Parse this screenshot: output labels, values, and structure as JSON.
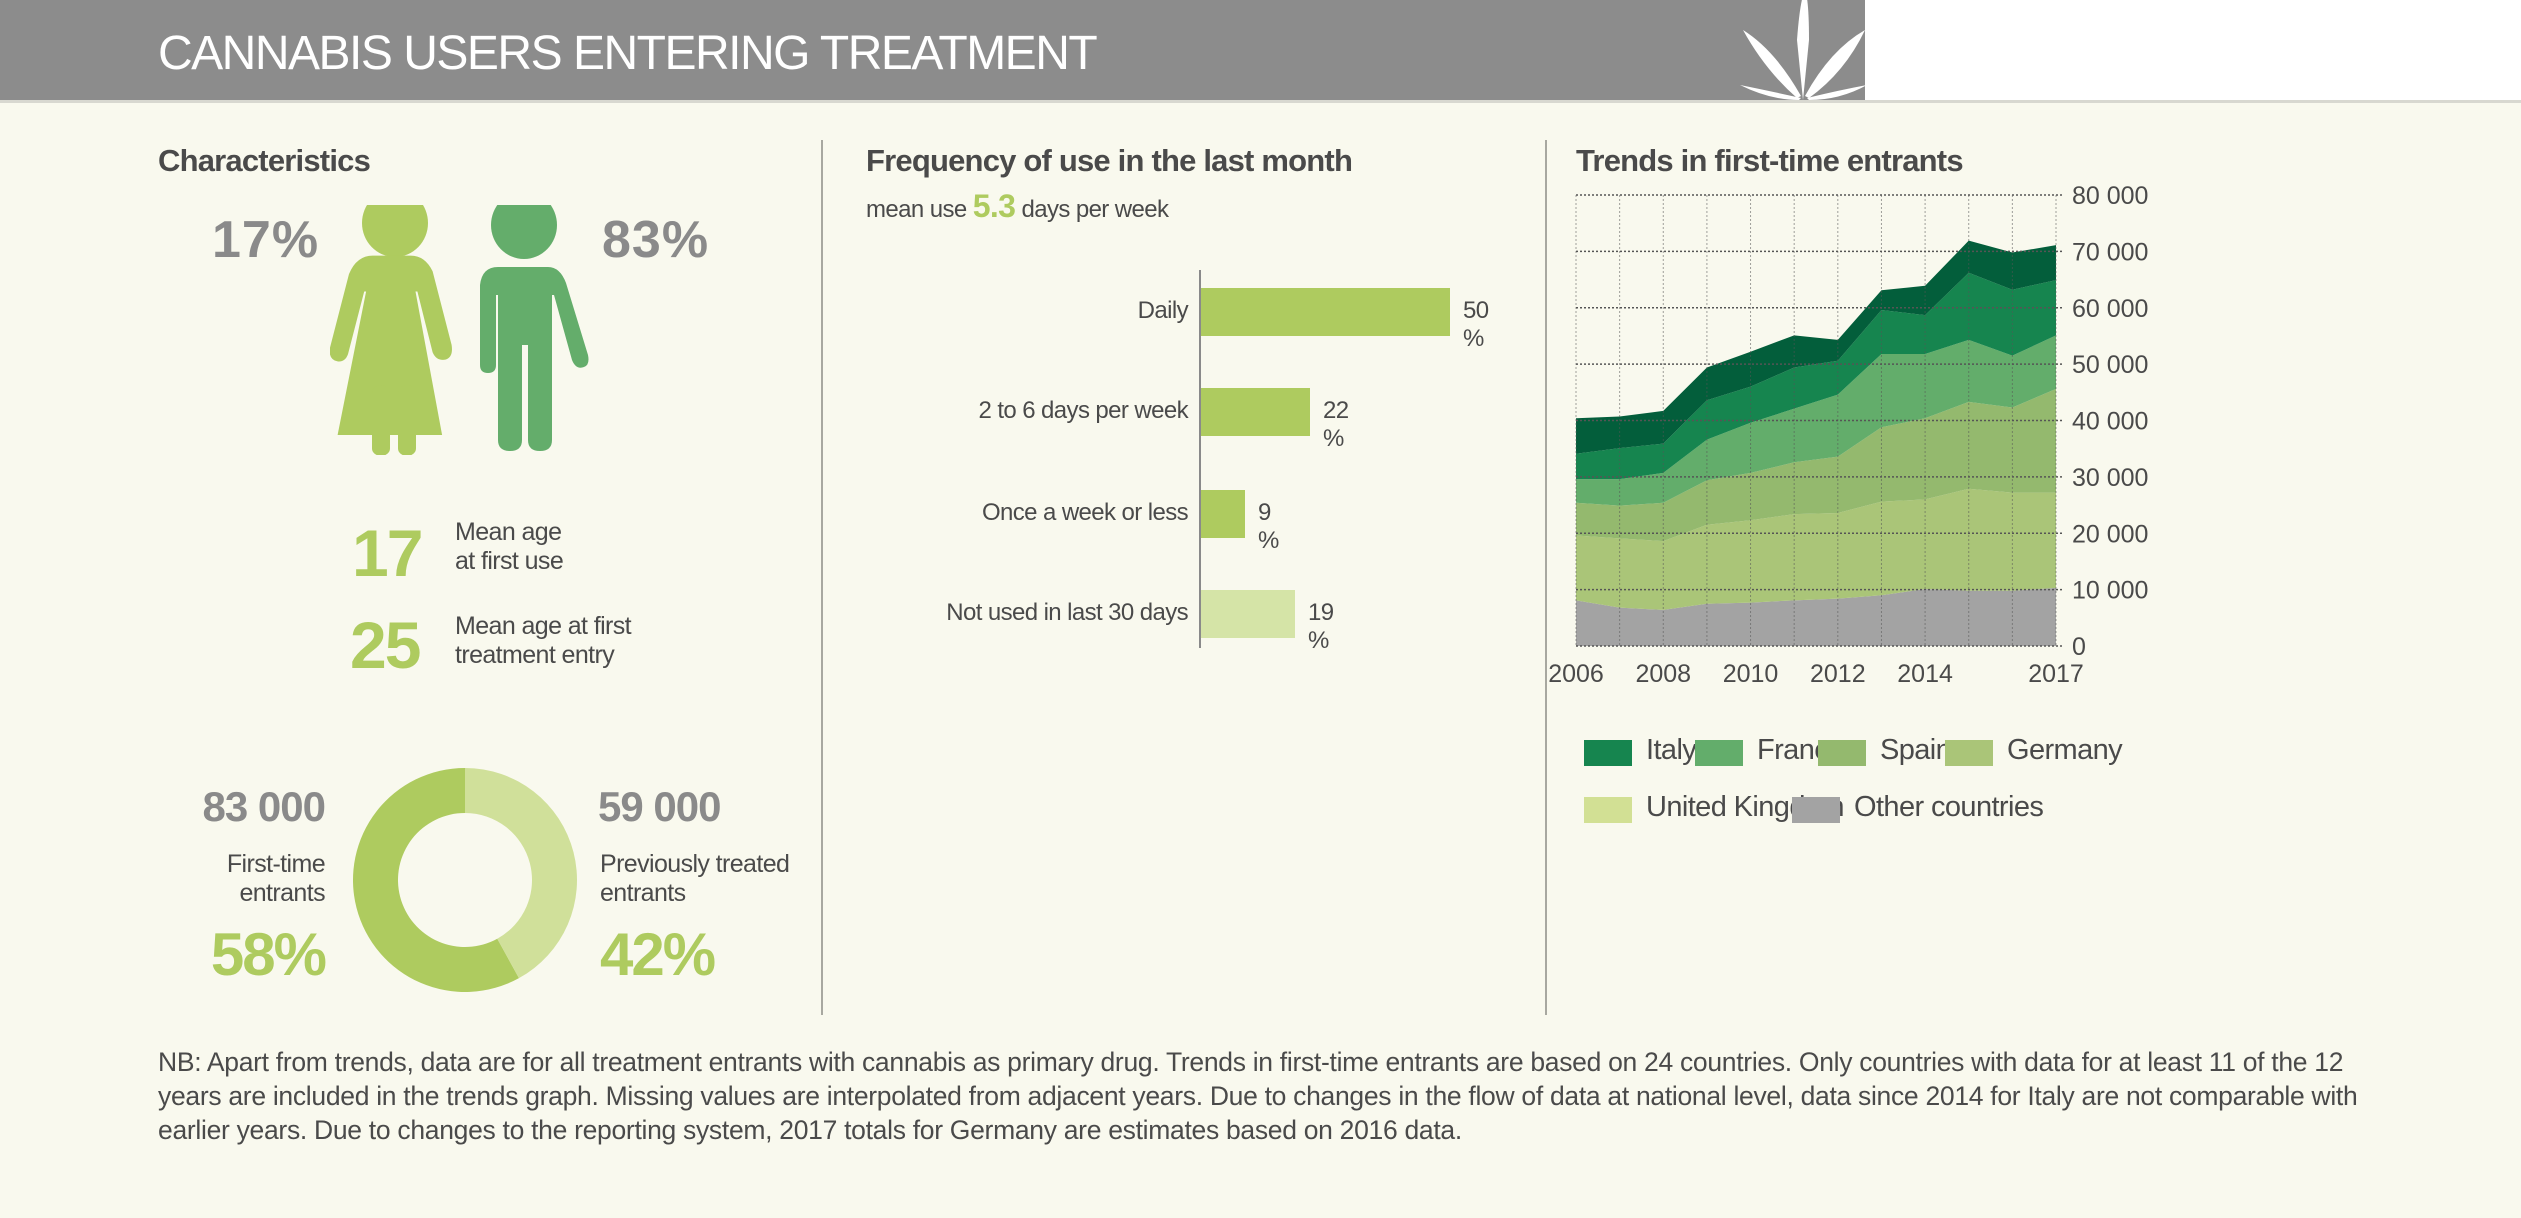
{
  "header": {
    "title": "CANNABIS USERS ENTERING TREATMENT"
  },
  "characteristics": {
    "title": "Characteristics",
    "female_pct": "17%",
    "male_pct": "83%",
    "female_color": "#aecb5f",
    "male_color": "#64ad6b",
    "age_first_use": "17",
    "age_first_use_label_1": "Mean age",
    "age_first_use_label_2": "at first use",
    "age_treatment": "25",
    "age_treatment_label_1": "Mean age at first",
    "age_treatment_label_2": "treatment entry",
    "first_time_count": "83 000",
    "first_time_label_1": "First-time",
    "first_time_label_2": "entrants",
    "first_time_pct": "58%",
    "previously_count": "59 000",
    "previously_label_1": "Previously treated",
    "previously_label_2": "entrants",
    "previously_pct": "42%"
  },
  "frequency": {
    "title": "Frequency of use in the last month",
    "subtitle_pre": "mean use",
    "subtitle_value": "5.3",
    "subtitle_post": "days per week"
  },
  "trends": {
    "title": "Trends in first-time entrants"
  },
  "chart_data": [
    {
      "type": "pie",
      "variant": "donut",
      "categories": [
        "First-time entrants",
        "Previously treated entrants"
      ],
      "values": [
        58,
        42
      ],
      "colors": [
        "#aecb5f",
        "#d0e09a"
      ]
    },
    {
      "type": "bar",
      "orientation": "horizontal",
      "title": "Frequency of use in the last month",
      "categories": [
        "Daily",
        "2 to 6 days per week",
        "Once a week or less",
        "Not used in last 30 days"
      ],
      "values": [
        50,
        22,
        9,
        19
      ],
      "value_labels": [
        "50 %",
        "22 %",
        "9 %",
        "19 %"
      ],
      "colors": [
        "#aecb5f",
        "#aecb5f",
        "#aecb5f",
        "#d5e4a7"
      ],
      "xlim": [
        0,
        100
      ]
    },
    {
      "type": "area",
      "stacked": true,
      "title": "Trends in first-time entrants",
      "x": [
        2006,
        2007,
        2008,
        2009,
        2010,
        2011,
        2012,
        2013,
        2014,
        2015,
        2016,
        2017
      ],
      "x_tick_labels": [
        "2006",
        "2008",
        "2010",
        "2012",
        "2014",
        "2017"
      ],
      "x_tick_values": [
        2006,
        2008,
        2010,
        2012,
        2014,
        2017
      ],
      "y_tick_labels": [
        "0",
        "10 000",
        "20 000",
        "30 000",
        "40 000",
        "50 000",
        "60 000",
        "70 000",
        "80 000"
      ],
      "ylim": [
        0,
        80000
      ],
      "grid": true,
      "y_axis_side": "right",
      "legend_placement": "bottom",
      "series": [
        {
          "name": "Other countries",
          "color": "#a3a3a3",
          "legend_color": "#a3a3a3",
          "values": [
            8100,
            6800,
            6400,
            7500,
            7700,
            8100,
            8400,
            9000,
            10100,
            9800,
            9800,
            10300
          ]
        },
        {
          "name": "United Kingdom",
          "color": "#aac578",
          "legend_color": "#d2e094",
          "values": [
            11500,
            12300,
            12200,
            14000,
            14600,
            15300,
            15200,
            16600,
            15900,
            18100,
            17400,
            16900
          ]
        },
        {
          "name": "Germany",
          "color": "#94b96e",
          "legend_color": "#aac578",
          "values": [
            5800,
            5800,
            6800,
            7900,
            8400,
            9200,
            10000,
            13200,
            14400,
            15400,
            15100,
            18400
          ]
        },
        {
          "name": "Spain",
          "color": "#63ad6b",
          "legend_color": "#94b96e",
          "values": [
            4200,
            4700,
            5300,
            7200,
            8900,
            9500,
            11000,
            13000,
            11400,
            11000,
            9200,
            9500
          ]
        },
        {
          "name": "France",
          "color": "#16854f",
          "legend_color": "#63ad6b",
          "values": [
            4500,
            5500,
            5200,
            7000,
            6400,
            7300,
            6000,
            7800,
            6900,
            11900,
            11700,
            9800
          ]
        },
        {
          "name": "Italy",
          "color": "#035e3b",
          "legend_color": "#16854f",
          "values": [
            6300,
            5600,
            5800,
            5800,
            6200,
            5700,
            3700,
            3500,
            5200,
            5700,
            6600,
            6200
          ]
        }
      ]
    }
  ],
  "note": "NB: Apart from trends, data are for all treatment entrants with cannabis as primary drug. Trends in first-time entrants are based on 24 countries. Only countries with data for at least 11 of the 12 years are included in the trends graph. Missing values are interpolated from adjacent years. Due to changes in the flow of data at national level, data since 2014 for Italy are not comparable with earlier years. Due to changes to the reporting system, 2017 totals for Germany are estimates based on 2016 data.",
  "icons": {
    "header": "cannabis-leaf-icon",
    "female": "female-figure-icon",
    "male": "male-figure-icon"
  }
}
